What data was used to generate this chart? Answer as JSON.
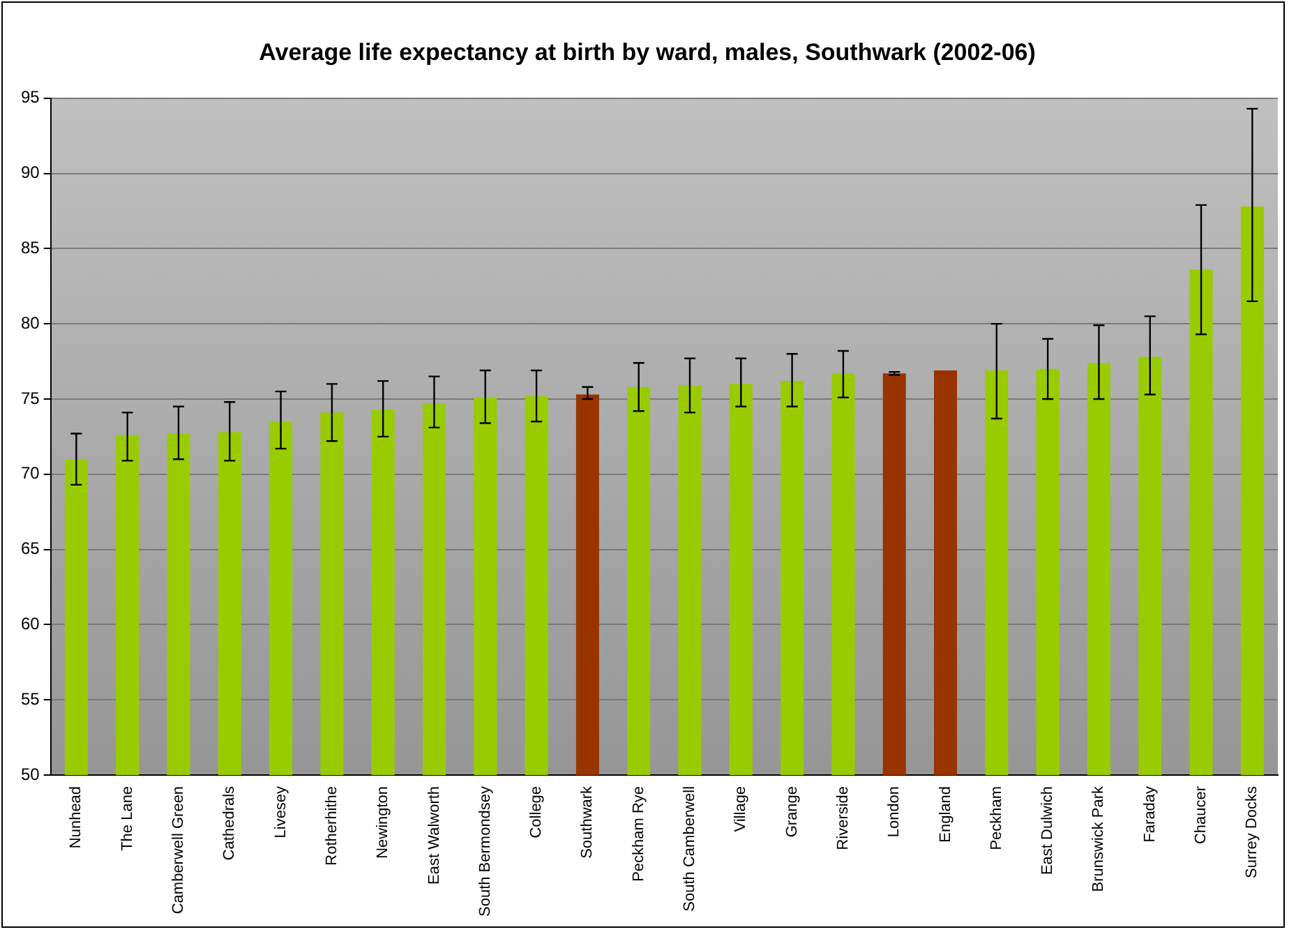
{
  "chart_data": {
    "type": "bar",
    "title": "Average life expectancy at birth by ward, males, Southwark (2002-06)",
    "categories": [
      "Nunhead",
      "The Lane",
      "Camberwell Green",
      "Cathedrals",
      "Livesey",
      "Rotherhithe",
      "Newington",
      "East Walworth",
      "South Bermondsey",
      "College",
      "Southwark",
      "Peckham Rye",
      "South Camberwell",
      "Village",
      "Grange",
      "Riverside",
      "London",
      "England",
      "Peckham",
      "East Dulwich",
      "Brunswick Park",
      "Faraday",
      "Chaucer",
      "Surrey Docks"
    ],
    "values": [
      71.0,
      72.6,
      72.7,
      72.8,
      73.5,
      74.1,
      74.3,
      74.7,
      75.1,
      75.2,
      75.3,
      75.8,
      75.9,
      76.0,
      76.2,
      76.7,
      76.7,
      76.9,
      76.9,
      77.0,
      77.4,
      77.8,
      83.6,
      87.8
    ],
    "colors": [
      "#99cc00",
      "#99cc00",
      "#99cc00",
      "#99cc00",
      "#99cc00",
      "#99cc00",
      "#99cc00",
      "#99cc00",
      "#99cc00",
      "#99cc00",
      "#993300",
      "#99cc00",
      "#99cc00",
      "#99cc00",
      "#99cc00",
      "#99cc00",
      "#993300",
      "#993300",
      "#99cc00",
      "#99cc00",
      "#99cc00",
      "#99cc00",
      "#99cc00",
      "#99cc00"
    ],
    "errors": [
      [
        69.3,
        72.7
      ],
      [
        70.9,
        74.1
      ],
      [
        71.0,
        74.5
      ],
      [
        70.9,
        74.8
      ],
      [
        71.7,
        75.5
      ],
      [
        72.2,
        76.0
      ],
      [
        72.5,
        76.2
      ],
      [
        73.1,
        76.5
      ],
      [
        73.4,
        76.9
      ],
      [
        73.5,
        76.9
      ],
      [
        75.0,
        75.8
      ],
      [
        74.2,
        77.4
      ],
      [
        74.1,
        77.7
      ],
      [
        74.5,
        77.7
      ],
      [
        74.5,
        78.0
      ],
      [
        75.1,
        78.2
      ],
      [
        76.6,
        76.8
      ],
      null,
      [
        73.7,
        80.0
      ],
      [
        75.0,
        79.0
      ],
      [
        75.0,
        79.9
      ],
      [
        75.3,
        80.5
      ],
      [
        79.3,
        87.9
      ],
      [
        81.5,
        94.3
      ]
    ],
    "ylim": [
      50,
      95
    ],
    "yticks": [
      50,
      55,
      60,
      65,
      70,
      75,
      80,
      85,
      90,
      95
    ],
    "grid": "y",
    "legend": false
  }
}
